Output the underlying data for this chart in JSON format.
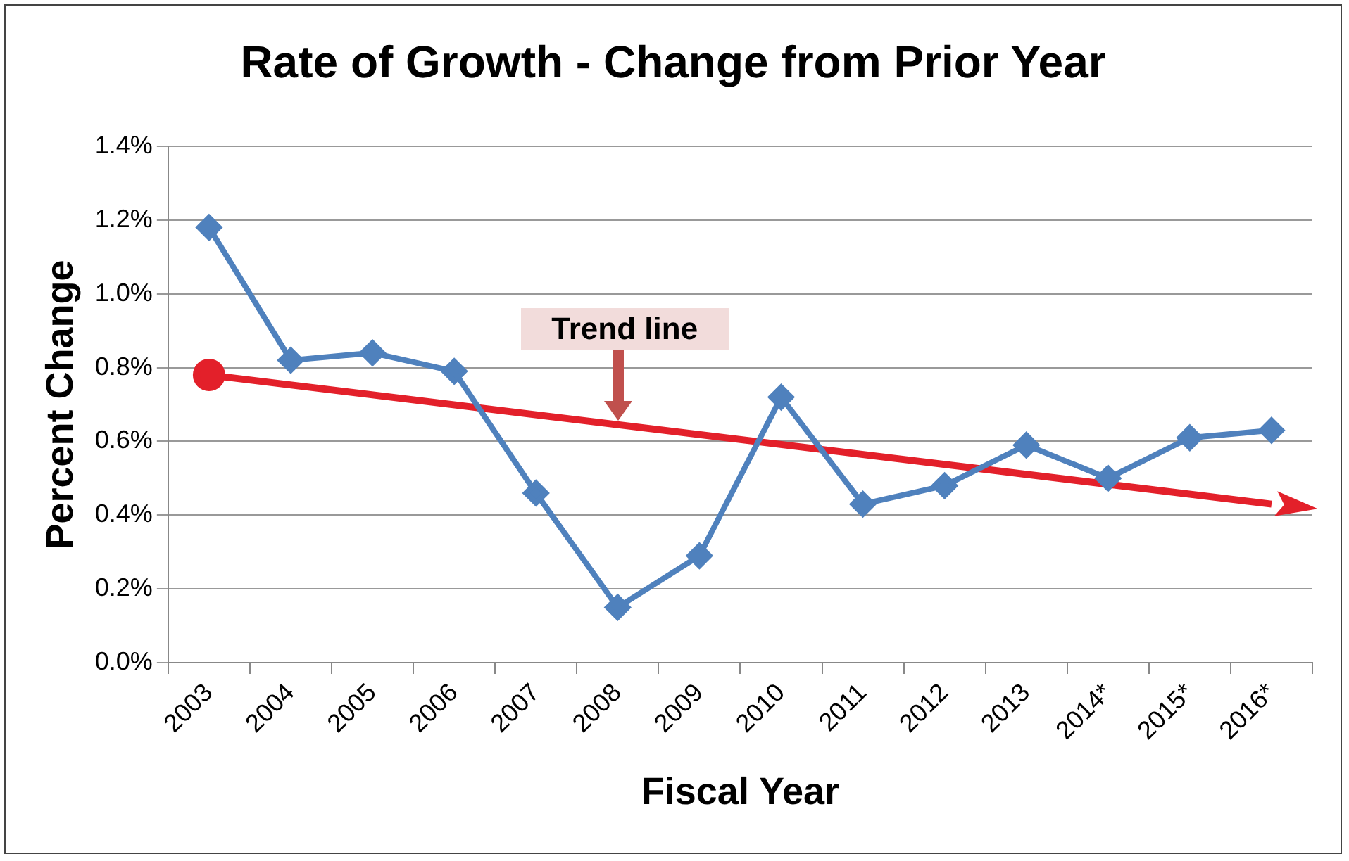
{
  "chart_data": {
    "type": "line",
    "title": "Rate of Growth - Change from Prior Year",
    "xlabel": "Fiscal Year",
    "ylabel": "Percent Change",
    "categories": [
      "2003",
      "2004",
      "2005",
      "2006",
      "2007",
      "2008",
      "2009",
      "2010",
      "2011",
      "2012",
      "2013",
      "2014*",
      "2015*",
      "2016*"
    ],
    "series": [
      {
        "color": "#4f81bd",
        "marker": "diamond",
        "values": [
          1.18,
          0.82,
          0.84,
          0.79,
          0.46,
          0.15,
          0.29,
          0.72,
          0.43,
          0.48,
          0.59,
          0.5,
          0.61,
          0.63
        ]
      },
      {
        "type": "line",
        "color": "#e3202a",
        "values": [
          0.78,
          null,
          null,
          null,
          null,
          null,
          null,
          null,
          null,
          null,
          null,
          null,
          null,
          0.43
        ]
      }
    ],
    "ylim": [
      0,
      1.4
    ],
    "yticks": [
      {
        "value": 0,
        "label": "0.0%"
      },
      {
        "value": 0.2,
        "label": "0.2%"
      },
      {
        "value": 0.4,
        "label": "0.4%"
      },
      {
        "value": 0.6,
        "label": "0.6%"
      },
      {
        "value": 0.8,
        "label": "0.8%"
      },
      {
        "value": 1.0,
        "label": "1.0%"
      },
      {
        "value": 1.2,
        "label": "1.2%"
      },
      {
        "value": 1.4,
        "label": "1.4%"
      }
    ],
    "grid": "y",
    "legend": false,
    "annotations": [
      {
        "text": "Trend line",
        "x": "2008",
        "y": 0.65
      }
    ]
  }
}
